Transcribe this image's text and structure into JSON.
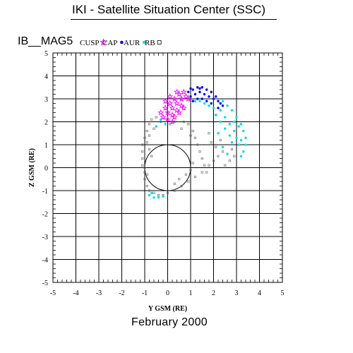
{
  "header": {
    "title": "IKI - Satellite Situation Center (SSC)",
    "satellite": "IB__MAG5",
    "date": "February    2000"
  },
  "chart_data": {
    "type": "scatter",
    "title": "IKI - Satellite Situation Center (SSC)",
    "xlabel": "Y GSM (RE)",
    "ylabel": "Z GSM (RE)",
    "xlim": [
      -5,
      5
    ],
    "ylim": [
      -5,
      5
    ],
    "xticks": [
      -5,
      -4,
      -3,
      -2,
      -1,
      0,
      1,
      2,
      3,
      4,
      5
    ],
    "yticks": [
      -5,
      -4,
      -3,
      -2,
      -1,
      0,
      1,
      2,
      3,
      4,
      5
    ],
    "grid": true,
    "legend_placement": "top-left",
    "earth_circle": {
      "center": [
        0,
        0
      ],
      "radius": 1
    },
    "colors": {
      "CUSP": "#ff00ff",
      "CAP": "#0000ff",
      "AUR": "#00e0e0",
      "RB": "#808080"
    },
    "series": [
      {
        "name": "CUSP",
        "marker": "star",
        "points": [
          [
            -0.3,
            2.4
          ],
          [
            -0.1,
            2.6
          ],
          [
            0.1,
            2.8
          ],
          [
            0.3,
            3.0
          ],
          [
            0.5,
            3.2
          ],
          [
            0.7,
            3.3
          ],
          [
            -0.2,
            2.2
          ],
          [
            0.0,
            2.4
          ],
          [
            0.2,
            2.6
          ],
          [
            0.4,
            2.8
          ],
          [
            0.6,
            3.0
          ],
          [
            0.8,
            3.1
          ],
          [
            0.0,
            2.1
          ],
          [
            0.2,
            2.3
          ],
          [
            0.4,
            2.5
          ],
          [
            0.6,
            2.7
          ],
          [
            0.3,
            2.2
          ],
          [
            0.5,
            2.4
          ],
          [
            -0.1,
            2.9
          ],
          [
            0.1,
            3.1
          ],
          [
            0.4,
            3.3
          ],
          [
            0.9,
            3.0
          ],
          [
            0.7,
            2.6
          ],
          [
            0.2,
            2.0
          ]
        ]
      },
      {
        "name": "CAP",
        "marker": "dot",
        "points": [
          [
            0.9,
            3.3
          ],
          [
            1.1,
            3.4
          ],
          [
            1.3,
            3.5
          ],
          [
            1.5,
            3.5
          ],
          [
            1.7,
            3.4
          ],
          [
            1.9,
            3.3
          ],
          [
            2.1,
            3.1
          ],
          [
            1.0,
            3.1
          ],
          [
            1.2,
            3.2
          ],
          [
            1.4,
            3.3
          ],
          [
            1.6,
            3.2
          ],
          [
            1.8,
            3.1
          ],
          [
            2.0,
            3.0
          ],
          [
            2.2,
            2.9
          ],
          [
            1.1,
            2.9
          ],
          [
            1.3,
            3.0
          ],
          [
            1.5,
            3.0
          ],
          [
            1.7,
            2.9
          ],
          [
            1.9,
            2.8
          ],
          [
            2.3,
            2.8
          ],
          [
            2.4,
            2.7
          ],
          [
            2.2,
            2.6
          ],
          [
            1.4,
            3.45
          ],
          [
            1.0,
            3.45
          ]
        ]
      },
      {
        "name": "AUR",
        "marker": "dot",
        "points": [
          [
            2.4,
            2.9
          ],
          [
            2.6,
            2.7
          ],
          [
            2.8,
            2.5
          ],
          [
            3.0,
            2.2
          ],
          [
            3.2,
            1.9
          ],
          [
            3.3,
            1.6
          ],
          [
            3.4,
            1.3
          ],
          [
            3.4,
            1.0
          ],
          [
            3.3,
            0.7
          ],
          [
            3.2,
            0.5
          ],
          [
            2.3,
            2.5
          ],
          [
            2.5,
            2.2
          ],
          [
            2.7,
            1.9
          ],
          [
            2.9,
            1.6
          ],
          [
            3.0,
            1.3
          ],
          [
            3.1,
            1.0
          ],
          [
            2.1,
            2.3
          ],
          [
            2.3,
            2.0
          ],
          [
            2.5,
            1.7
          ],
          [
            2.7,
            1.4
          ],
          [
            2.8,
            1.1
          ],
          [
            2.0,
            2.6
          ],
          [
            1.8,
            2.7
          ],
          [
            1.6,
            2.8
          ],
          [
            1.4,
            2.9
          ],
          [
            1.2,
            2.9
          ],
          [
            -0.3,
            2.1
          ],
          [
            -0.5,
            1.8
          ],
          [
            -0.1,
            1.9
          ],
          [
            3.2,
            1.2
          ],
          [
            2.4,
            0.9
          ],
          [
            2.6,
            0.6
          ],
          [
            2.2,
            1.5
          ],
          [
            -0.8,
            -1.2
          ],
          [
            -0.6,
            -1.3
          ],
          [
            -0.4,
            -1.3
          ],
          [
            -0.2,
            -1.25
          ],
          [
            -0.7,
            -1.1
          ],
          [
            2.9,
            2.0
          ],
          [
            3.1,
            1.8
          ]
        ]
      },
      {
        "name": "RB",
        "marker": "square",
        "points": [
          [
            -0.8,
            1.9
          ],
          [
            -0.9,
            1.6
          ],
          [
            -1.0,
            1.3
          ],
          [
            -1.1,
            1.0
          ],
          [
            -1.1,
            0.7
          ],
          [
            -1.1,
            0.4
          ],
          [
            -1.1,
            0.1
          ],
          [
            -1.0,
            -0.2
          ],
          [
            -1.0,
            -0.5
          ],
          [
            -0.9,
            -0.8
          ],
          [
            -0.8,
            -1.0
          ],
          [
            -0.6,
            -1.1
          ],
          [
            -0.4,
            -1.2
          ],
          [
            -0.2,
            -1.2
          ],
          [
            0.0,
            -1.1
          ],
          [
            0.3,
            -1.0
          ],
          [
            0.6,
            -0.8
          ],
          [
            0.9,
            -0.6
          ],
          [
            1.2,
            -0.4
          ],
          [
            1.5,
            -0.2
          ],
          [
            1.8,
            0.1
          ],
          [
            2.0,
            0.3
          ],
          [
            2.2,
            0.5
          ],
          [
            2.4,
            0.7
          ],
          [
            -0.7,
            2.1
          ],
          [
            -0.5,
            2.2
          ],
          [
            -0.3,
            2.0
          ],
          [
            -0.6,
            1.7
          ],
          [
            -0.8,
            1.4
          ],
          [
            -0.9,
            1.1
          ],
          [
            -0.8,
            0.8
          ],
          [
            -0.7,
            0.5
          ],
          [
            0.9,
            1.9
          ],
          [
            1.1,
            1.6
          ],
          [
            1.2,
            1.3
          ],
          [
            1.3,
            1.0
          ],
          [
            1.4,
            0.7
          ],
          [
            1.5,
            0.4
          ],
          [
            1.6,
            0.1
          ],
          [
            1.7,
            -0.2
          ],
          [
            1.1,
            0.2
          ],
          [
            1.0,
            -0.1
          ],
          [
            0.8,
            -0.3
          ],
          [
            0.5,
            -0.5
          ],
          [
            0.3,
            -0.7
          ],
          [
            2.8,
            0.8
          ],
          [
            2.9,
            0.5
          ],
          [
            2.7,
            0.3
          ],
          [
            2.5,
            0.1
          ],
          [
            0.1,
            1.9
          ],
          [
            0.3,
            2.0
          ],
          [
            0.7,
            2.0
          ],
          [
            -1.0,
            0.0
          ],
          [
            -0.9,
            -0.3
          ],
          [
            1.9,
            1.1
          ],
          [
            2.1,
            0.9
          ],
          [
            2.3,
            1.2
          ],
          [
            1.8,
            1.5
          ],
          [
            0.6,
            1.7
          ],
          [
            1.0,
            1.4
          ]
        ]
      }
    ]
  }
}
